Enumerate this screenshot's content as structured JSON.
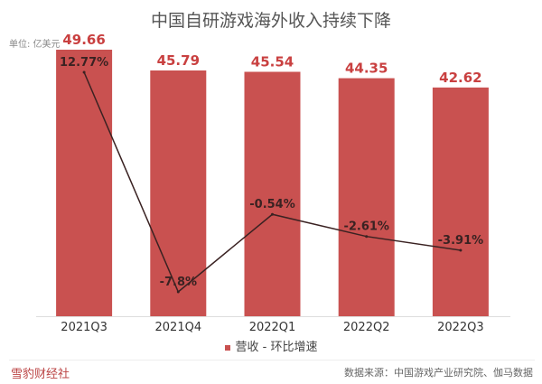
{
  "chart_data": {
    "type": "bar",
    "title": "中国自研游戏海外收入持续下降",
    "unit_label": "单位: 亿美元",
    "categories": [
      "2021Q3",
      "2021Q4",
      "2022Q1",
      "2022Q2",
      "2022Q3"
    ],
    "series": [
      {
        "name": "营收",
        "type": "bar",
        "values": [
          49.66,
          45.79,
          45.54,
          44.35,
          42.62
        ],
        "labels": [
          "49.66",
          "45.79",
          "45.54",
          "44.35",
          "42.62"
        ],
        "color": "#c95150"
      },
      {
        "name": "环比增速",
        "type": "line",
        "values": [
          12.77,
          -7.8,
          -0.54,
          -2.61,
          -3.91
        ],
        "labels": [
          "12.77%",
          "-7.8%",
          "-0.54%",
          "-2.61%",
          "-3.91%"
        ],
        "color": "#3a2222"
      }
    ],
    "ylim": [
      0,
      49.66
    ],
    "y2lim": [
      -7.8,
      12.77
    ],
    "legend": "bottom-center",
    "legend_text": "营收 - 环比增速"
  },
  "footer": {
    "logo": "雪豹财经社",
    "source": "数据来源：中国游戏产业研究院、伽马数据"
  }
}
